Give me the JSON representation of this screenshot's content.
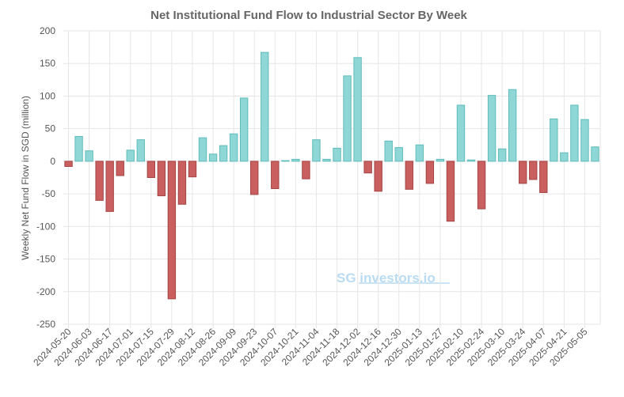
{
  "chart_data": {
    "type": "bar",
    "title": "Net Institutional Fund Flow to Industrial Sector By Week",
    "y_label": "Weekly Net Fund Flow in SGD (million)",
    "watermark": "SG investors.io",
    "categories": [
      "2024-05-20",
      null,
      "2024-06-03",
      null,
      "2024-06-17",
      null,
      "2024-07-01",
      null,
      "2024-07-15",
      null,
      "2024-07-29",
      null,
      "2024-08-12",
      null,
      "2024-08-26",
      null,
      "2024-09-09",
      null,
      "2024-09-23",
      null,
      "2024-10-07",
      null,
      "2024-10-21",
      null,
      "2024-11-04",
      null,
      "2024-11-18",
      null,
      "2024-12-02",
      null,
      "2024-12-16",
      null,
      "2024-12-30",
      null,
      "2025-01-13",
      null,
      "2025-01-27",
      null,
      "2025-02-10",
      null,
      "2025-02-24",
      null,
      "2025-03-10",
      null,
      "2025-03-24",
      null,
      "2025-04-07",
      null,
      "2025-04-21",
      null,
      "2025-05-05",
      null
    ],
    "values": [
      -8,
      38,
      16,
      -60,
      -77,
      -22,
      17,
      33,
      -25,
      -53,
      -211,
      -66,
      -24,
      36,
      11,
      24,
      42,
      97,
      -51,
      167,
      -42,
      1,
      3,
      -27,
      33,
      3,
      20,
      131,
      159,
      -18,
      -46,
      31,
      21,
      -43,
      25,
      -34,
      3,
      -92,
      86,
      2,
      -73,
      101,
      19,
      110,
      -34,
      -28,
      -48,
      65,
      13,
      86,
      64,
      22
    ],
    "positive_color": "#8fd7d6",
    "negative_color": "#c95f5e",
    "ylim": [
      -250,
      200
    ],
    "yticks": [
      -250,
      -200,
      -150,
      -100,
      -50,
      0,
      50,
      100,
      150,
      200
    ],
    "grid": true
  }
}
